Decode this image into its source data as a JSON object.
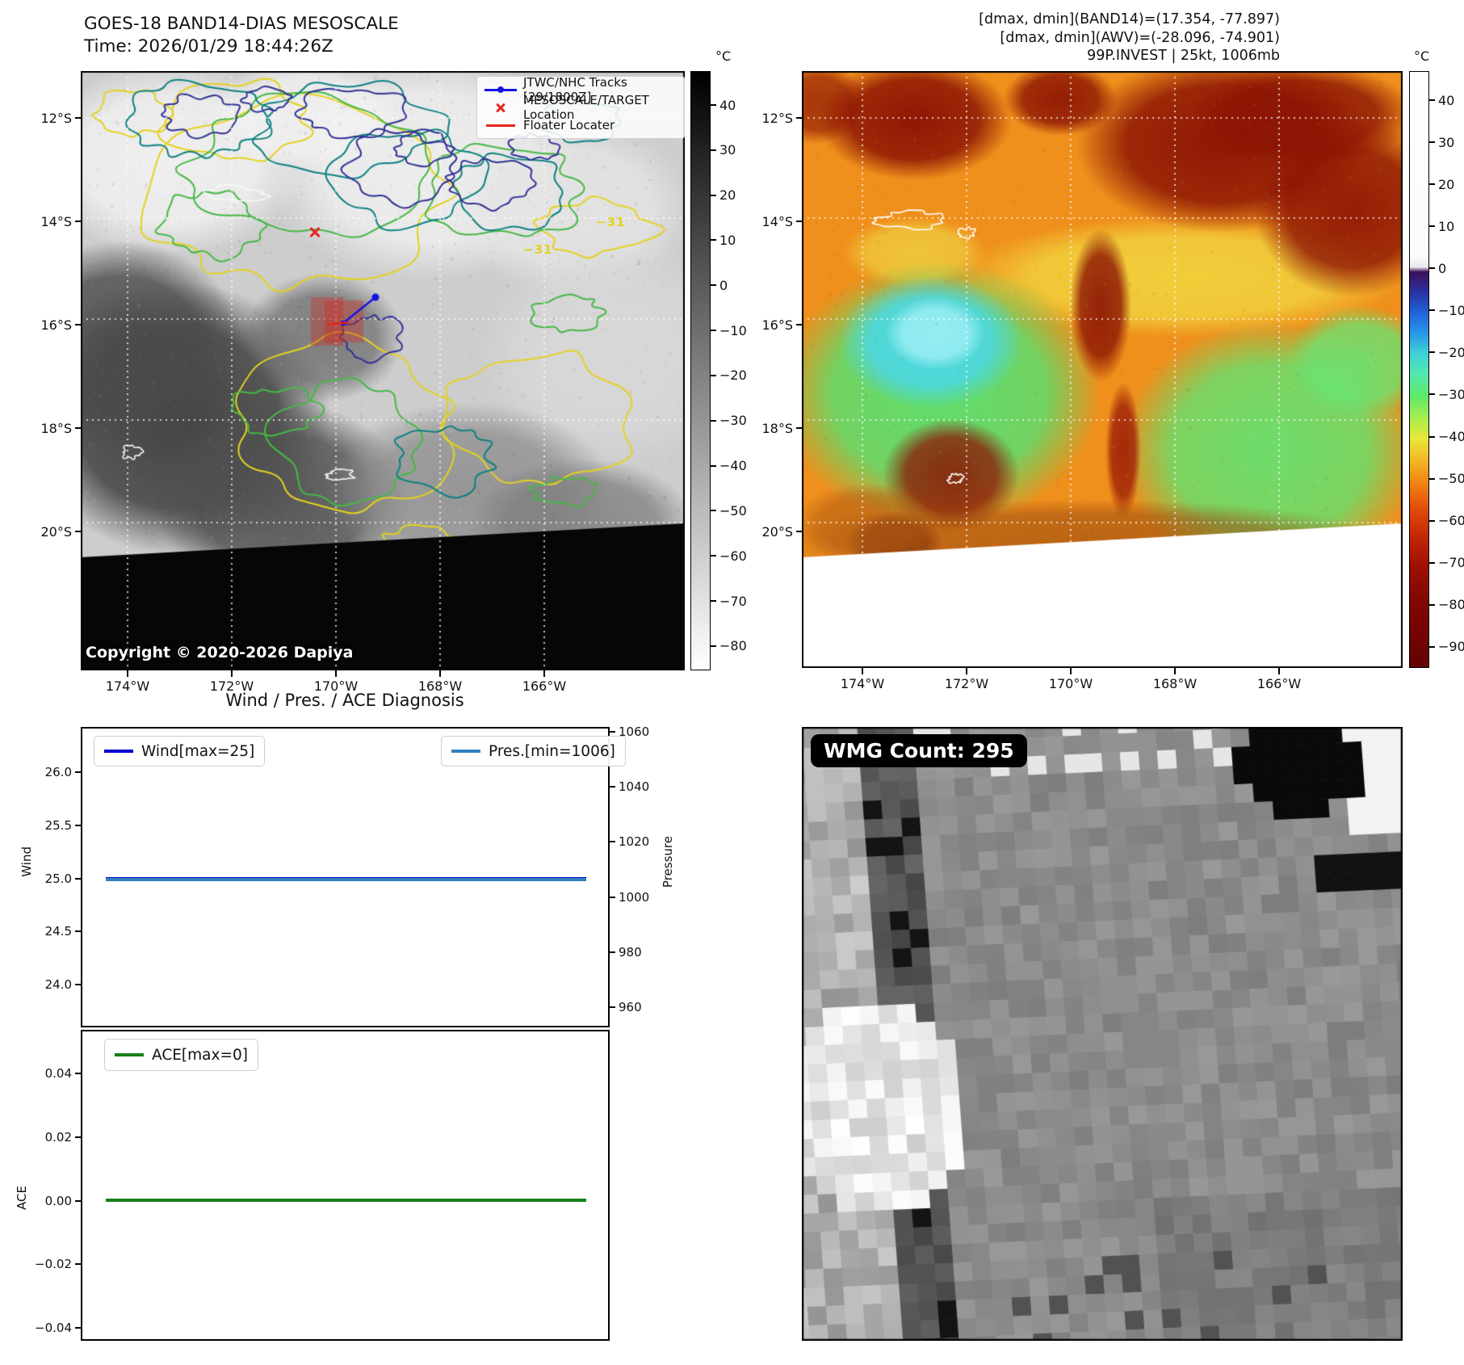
{
  "colors": {
    "wind_line": "#0000cc",
    "pres_line": "#3182bd",
    "ace_line": "#158015",
    "marker_red": "#e8261f",
    "track_blue": "#1414e6",
    "contour_yellow": "#e3d21f"
  },
  "panel_tl": {
    "title_line1": "GOES-18 BAND14-DIAS MESOSCALE",
    "title_line2": "Time: 2026/01/29 18:44:26Z",
    "legend_labels": [
      "JTWC/NHC Tracks [29/1800Z]",
      "MESOSCALE/TARGET Location",
      "Floater Locater"
    ],
    "copyright": "Copyright © 2020-2026 Dapiya",
    "contour_label": "−31",
    "lat_ticks": [
      "12°S",
      "14°S",
      "16°S",
      "18°S",
      "20°S"
    ],
    "lon_ticks": [
      "174°W",
      "172°W",
      "170°W",
      "168°W",
      "166°W"
    ],
    "colorbar_unit": "°C",
    "colorbar_ticks": [
      "40",
      "30",
      "20",
      "10",
      "0",
      "−10",
      "−20",
      "−30",
      "−40",
      "−50",
      "−60",
      "−70",
      "−80"
    ]
  },
  "panel_tr": {
    "header_lines": [
      "[dmax, dmin](BAND14)=(17.354, -77.897)",
      "[dmax, dmin](AWV)=(-28.096, -74.901)",
      "99P.INVEST | 25kt, 1006mb"
    ],
    "lat_ticks": [
      "12°S",
      "14°S",
      "16°S",
      "18°S",
      "20°S"
    ],
    "lon_ticks": [
      "174°W",
      "172°W",
      "170°W",
      "168°W",
      "166°W"
    ],
    "colorbar_unit": "°C",
    "colorbar_ticks": [
      "40",
      "30",
      "20",
      "10",
      "0",
      "−10",
      "−20",
      "−30",
      "−40",
      "−50",
      "−60",
      "−70",
      "−80",
      "−90"
    ]
  },
  "panel_bl": {
    "title": "Wind / Pres. / ACE Diagnosis",
    "wind": {
      "legend": "Wind[max=25]",
      "ylabel": "Wind",
      "yticks": [
        "26.0",
        "25.5",
        "25.0",
        "24.5",
        "24.0"
      ]
    },
    "pressure": {
      "legend": "Pres.[min=1006]",
      "ylabel": "Pressure",
      "yticks": [
        "1060",
        "1040",
        "1020",
        "1000",
        "980",
        "960"
      ]
    },
    "ace": {
      "legend": "ACE[max=0]",
      "ylabel": "ACE",
      "yticks": [
        "0.04",
        "0.02",
        "0.00",
        "−0.02",
        "−0.04"
      ]
    }
  },
  "panel_br": {
    "wmg_label": "WMG Count: 295"
  },
  "chart_data": [
    {
      "type": "line",
      "title": "Wind / Pres. / ACE Diagnosis",
      "ylabel": "Wind",
      "y2label": "Pressure",
      "ylim": [
        23.75,
        26.25
      ],
      "y2lim": [
        948,
        1062
      ],
      "series": [
        {
          "name": "Wind[max=25]",
          "axis": "left",
          "values": [
            25,
            25
          ]
        },
        {
          "name": "Pres.[min=1006]",
          "axis": "right",
          "values": [
            1006,
            1006
          ]
        }
      ],
      "legend_position": "upper left and upper right",
      "grid": false
    },
    {
      "type": "line",
      "ylabel": "ACE",
      "ylim": [
        -0.05,
        0.05
      ],
      "series": [
        {
          "name": "ACE[max=0]",
          "values": [
            0,
            0
          ]
        }
      ],
      "legend_position": "upper left",
      "grid": false
    }
  ]
}
